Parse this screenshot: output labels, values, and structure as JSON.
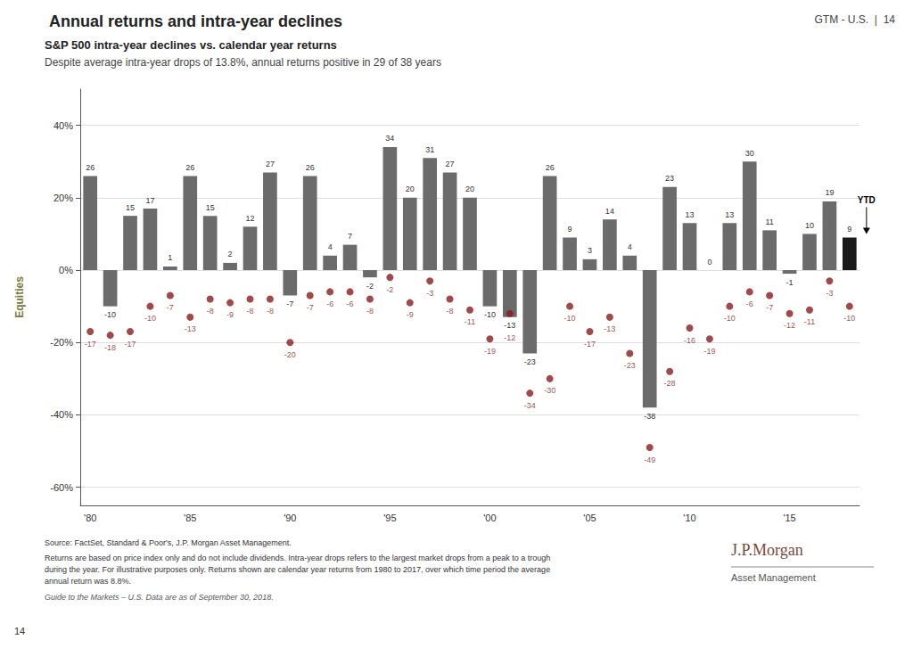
{
  "chart_data": {
    "type": "bar",
    "title": "Annual returns and intra-year declines",
    "subtitle": [
      "S&P 500 intra-year declines vs. calendar year returns",
      "Despite average intra-year drops of 13.8%, annual returns positive in 29 of 38 years"
    ],
    "header_note": "GTM - U.S.  |  14",
    "side_label": "Equities",
    "categories": [
      "'80",
      null,
      null,
      null,
      null,
      "'85",
      null,
      null,
      null,
      null,
      "'90",
      null,
      null,
      null,
      null,
      "'95",
      null,
      null,
      null,
      null,
      "'00",
      null,
      null,
      null,
      null,
      "'05",
      null,
      null,
      null,
      null,
      "'10",
      null,
      null,
      null,
      null,
      "'15",
      null,
      null,
      null
    ],
    "series": [
      {
        "type": "bar",
        "values": [
          26,
          -10,
          15,
          17,
          1,
          26,
          15,
          2,
          12,
          27,
          -7,
          26,
          4,
          7,
          -2,
          34,
          20,
          31,
          27,
          20,
          -10,
          -13,
          -23,
          26,
          9,
          3,
          14,
          4,
          -38,
          23,
          13,
          0,
          13,
          30,
          11,
          -1,
          10,
          19,
          9
        ],
        "colors": [
          "#6b6b6b",
          "#6b6b6b",
          "#6b6b6b",
          "#6b6b6b",
          "#6b6b6b",
          "#6b6b6b",
          "#6b6b6b",
          "#6b6b6b",
          "#6b6b6b",
          "#6b6b6b",
          "#6b6b6b",
          "#6b6b6b",
          "#6b6b6b",
          "#6b6b6b",
          "#6b6b6b",
          "#6b6b6b",
          "#6b6b6b",
          "#6b6b6b",
          "#6b6b6b",
          "#6b6b6b",
          "#6b6b6b",
          "#6b6b6b",
          "#6b6b6b",
          "#6b6b6b",
          "#6b6b6b",
          "#6b6b6b",
          "#6b6b6b",
          "#6b6b6b",
          "#6b6b6b",
          "#6b6b6b",
          "#6b6b6b",
          "#6b6b6b",
          "#6b6b6b",
          "#6b6b6b",
          "#6b6b6b",
          "#6b6b6b",
          "#6b6b6b",
          "#6b6b6b",
          "#1a1a1a"
        ]
      },
      {
        "type": "scatter",
        "values": [
          -17,
          -18,
          -17,
          -10,
          -7,
          -13,
          -8,
          -9,
          -8,
          -8,
          -20,
          -7,
          -6,
          -6,
          -8,
          -2,
          -9,
          -3,
          -8,
          -11,
          -19,
          -12,
          -34,
          -30,
          -10,
          -17,
          -13,
          -23,
          -49,
          -28,
          -16,
          -19,
          -10,
          -6,
          -7,
          -12,
          -11,
          -3,
          -10
        ],
        "color": "#8b1a1a"
      }
    ],
    "data_labels": true,
    "ylim": [
      -65,
      50
    ],
    "yticks": [
      {
        "value": -60,
        "label": "-60%"
      },
      {
        "value": -40,
        "label": "-40%"
      },
      {
        "value": -20,
        "label": "-20%"
      },
      {
        "value": 0,
        "label": "0%"
      },
      {
        "value": 20,
        "label": "20%"
      },
      {
        "value": 40,
        "label": "40%"
      }
    ],
    "grid": true,
    "annotations": [
      "YTD"
    ],
    "source": [
      "Source: FactSet, Standard & Poor's, J.P. Morgan Asset Management.",
      "Returns are based on price index only and do not include dividends. Intra-year drops refers to the largest market drops from a peak to a trough",
      "during the year. For illustrative purposes only. Returns shown are calendar year returns from 1980 to 2017, over which time period the average",
      "annual return was 8.8%.",
      "Guide to the Markets – U.S. Data are as of September 30, 2018."
    ],
    "page_number": "14",
    "logo": [
      "J.P.Morgan",
      "Asset Management"
    ]
  }
}
